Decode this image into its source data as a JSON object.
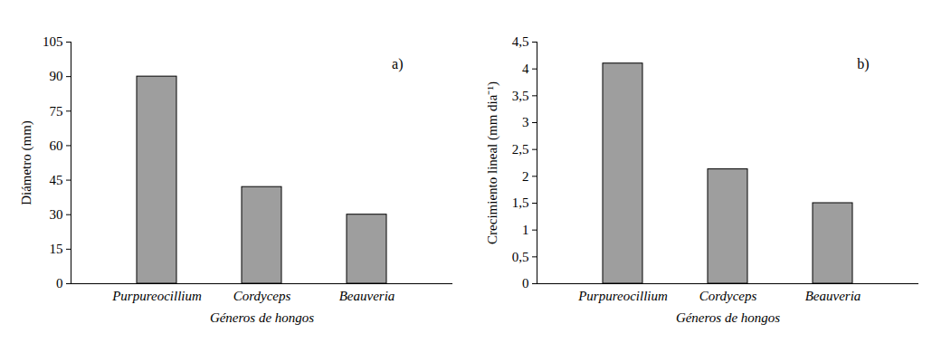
{
  "chart_data": [
    {
      "type": "bar",
      "annotation": "a)",
      "x_label": "Géneros de hongos",
      "y_label": "Diámetro (mm)",
      "categories": [
        "Purpureocillium",
        "Cordyceps",
        "Beauveria"
      ],
      "values": [
        90,
        42,
        30
      ],
      "color": "#9e9e9e",
      "ylim": [
        0,
        105
      ],
      "yticks": [
        0,
        15,
        30,
        45,
        60,
        75,
        90,
        105
      ],
      "grid": false
    },
    {
      "type": "bar",
      "annotation": "b)",
      "x_label": "Géneros de hongos",
      "y_label": "Crecimiento lineal (mm dia⁻¹)",
      "categories": [
        "Purpureocillium",
        "Cordyceps",
        "Beauveria"
      ],
      "values": [
        4.1,
        2.13,
        1.5
      ],
      "color": "#9e9e9e",
      "ylim": [
        0,
        4.5
      ],
      "yticks": [
        0,
        {
          "value": 0.5,
          "label": "0,5"
        },
        1,
        {
          "value": 1.5,
          "label": "1,5"
        },
        2,
        {
          "value": 2.5,
          "label": "2,5"
        },
        3,
        {
          "value": 3.5,
          "label": "3,5"
        },
        4,
        {
          "value": 4.5,
          "label": "4,5"
        }
      ],
      "grid": false
    }
  ]
}
